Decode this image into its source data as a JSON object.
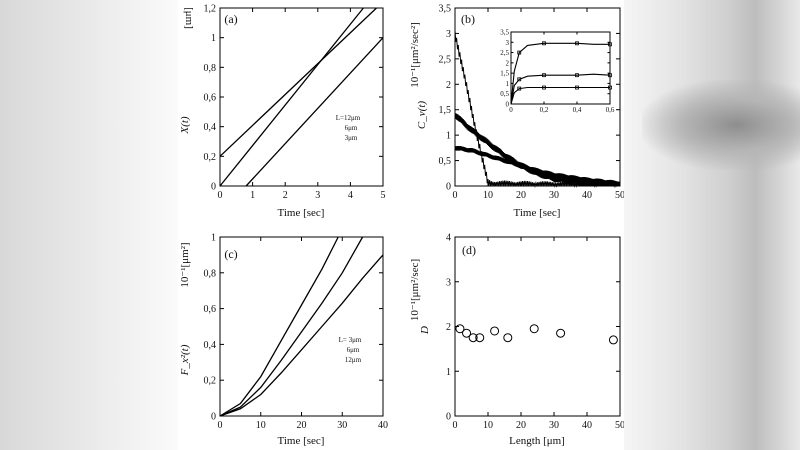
{
  "panels": {
    "a": {
      "letter": "(a)",
      "y_title": "X(t)",
      "y_unit": "[μm]",
      "x_label": "Time [sec]",
      "x_ticks": [
        "0",
        "1",
        "2",
        "3",
        "4",
        "5"
      ],
      "y_ticks": [
        "0",
        "0,2",
        "0,4",
        "0,6",
        "0,8",
        "1",
        "1,2"
      ],
      "legend": [
        "L=12μm",
        "6μm",
        "3μm"
      ]
    },
    "b": {
      "letter": "(b)",
      "y_title": "C_v(t)",
      "y_unit": "10⁻¹[μm²/sec²]",
      "x_label": "Time [sec]",
      "x_ticks": [
        "0",
        "10",
        "20",
        "30",
        "40",
        "50"
      ],
      "y_ticks": [
        "0",
        "0,5",
        "1",
        "1,5",
        "2",
        "2,5",
        "3",
        "3,5"
      ],
      "inset_x_ticks": [
        "0",
        "0,2",
        "0,4",
        "0,6"
      ],
      "inset_y_ticks": [
        "0",
        "0,5",
        "1",
        "1,5",
        "2",
        "2,5",
        "3",
        "3,5"
      ]
    },
    "c": {
      "letter": "(c)",
      "y_title": "F_x²(t)",
      "y_unit": "10⁻¹[μm²]",
      "x_label": "Time [sec]",
      "x_ticks": [
        "0",
        "10",
        "20",
        "30",
        "40"
      ],
      "y_ticks": [
        "0",
        "0,2",
        "0,4",
        "0,6",
        "0,8",
        "1"
      ],
      "legend": [
        "L= 3μm",
        "6μm",
        "12μm"
      ]
    },
    "d": {
      "letter": "(d)",
      "y_title": "D",
      "y_unit": "10⁻¹[μm²/sec]",
      "x_label": "Length [μm]",
      "x_ticks": [
        "0",
        "10",
        "20",
        "30",
        "40",
        "50"
      ],
      "y_ticks": [
        "0",
        "1",
        "2",
        "3",
        "4"
      ]
    }
  },
  "chart_data": [
    {
      "type": "line",
      "panel": "a",
      "xlim": [
        0,
        5
      ],
      "ylim": [
        0,
        1.2
      ],
      "series": [
        {
          "name": "L=12μm",
          "x": [
            0,
            4.8
          ],
          "y": [
            0.2,
            1.2
          ]
        },
        {
          "name": "6μm",
          "x": [
            0,
            4.4
          ],
          "y": [
            0.0,
            1.2
          ]
        },
        {
          "name": "3μm",
          "x": [
            0.8,
            5
          ],
          "y": [
            0.0,
            1.0
          ]
        }
      ]
    },
    {
      "type": "line",
      "panel": "b",
      "xlim": [
        0,
        50
      ],
      "ylim": [
        0,
        3.5
      ],
      "series": [
        {
          "x": [
            0,
            2,
            4,
            6,
            8,
            10,
            11,
            20,
            30,
            40,
            50
          ],
          "y": [
            3.0,
            2.4,
            1.8,
            1.2,
            0.6,
            0.05,
            0.02,
            0.01,
            0.0,
            0.0,
            0.0
          ]
        },
        {
          "x": [
            0,
            5,
            10,
            15,
            20,
            25,
            30,
            40,
            50
          ],
          "y": [
            1.4,
            1.1,
            0.85,
            0.6,
            0.4,
            0.25,
            0.15,
            0.06,
            0.02
          ]
        },
        {
          "x": [
            0,
            5,
            10,
            15,
            20,
            25,
            30,
            40,
            50
          ],
          "y": [
            0.75,
            0.7,
            0.6,
            0.5,
            0.4,
            0.3,
            0.22,
            0.12,
            0.05
          ]
        }
      ]
    },
    {
      "type": "line",
      "panel": "b-inset",
      "xlim": [
        0,
        0.6
      ],
      "ylim": [
        0,
        3.5
      ],
      "series": [
        {
          "x": [
            0,
            0.02,
            0.05,
            0.1,
            0.2,
            0.3,
            0.4,
            0.5,
            0.6
          ],
          "y": [
            0,
            1.6,
            2.5,
            2.85,
            2.95,
            2.95,
            2.95,
            2.9,
            2.9
          ]
        },
        {
          "x": [
            0,
            0.02,
            0.05,
            0.1,
            0.2,
            0.3,
            0.4,
            0.5,
            0.6
          ],
          "y": [
            0,
            0.9,
            1.2,
            1.35,
            1.4,
            1.4,
            1.4,
            1.45,
            1.4
          ]
        },
        {
          "x": [
            0,
            0.02,
            0.05,
            0.1,
            0.2,
            0.3,
            0.4,
            0.5,
            0.6
          ],
          "y": [
            0,
            0.55,
            0.75,
            0.8,
            0.8,
            0.8,
            0.8,
            0.8,
            0.8
          ]
        }
      ]
    },
    {
      "type": "line",
      "panel": "c",
      "xlim": [
        0,
        40
      ],
      "ylim": [
        0,
        1
      ],
      "series": [
        {
          "name": "L= 3μm",
          "x": [
            0,
            5,
            10,
            15,
            20,
            25,
            29
          ],
          "y": [
            0,
            0.07,
            0.22,
            0.42,
            0.62,
            0.82,
            1.0
          ]
        },
        {
          "name": "6μm",
          "x": [
            0,
            5,
            10,
            15,
            20,
            25,
            30,
            35
          ],
          "y": [
            0,
            0.05,
            0.16,
            0.31,
            0.47,
            0.63,
            0.8,
            1.0
          ]
        },
        {
          "name": "12μm",
          "x": [
            0,
            5,
            10,
            15,
            20,
            25,
            30,
            35,
            40
          ],
          "y": [
            0,
            0.04,
            0.12,
            0.24,
            0.37,
            0.5,
            0.63,
            0.77,
            0.9
          ]
        }
      ]
    },
    {
      "type": "scatter",
      "panel": "d",
      "xlim": [
        0,
        50
      ],
      "ylim": [
        0,
        4
      ],
      "x": [
        1.5,
        3.5,
        5.5,
        7.5,
        12,
        16,
        24,
        32,
        48
      ],
      "y": [
        1.95,
        1.85,
        1.75,
        1.75,
        1.9,
        1.75,
        1.95,
        1.85,
        1.7
      ]
    }
  ]
}
